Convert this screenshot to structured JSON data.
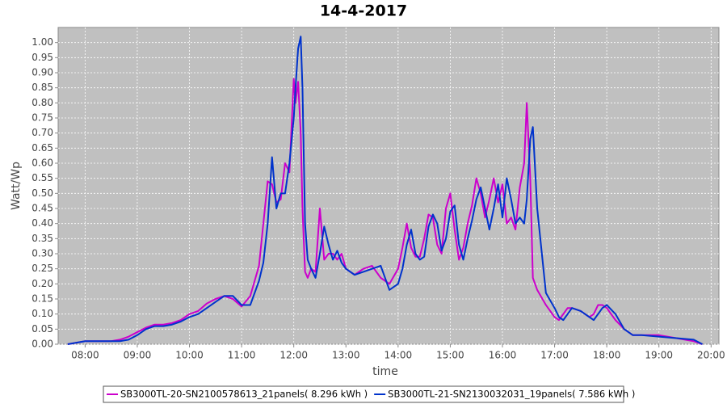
{
  "chart_data": {
    "type": "line",
    "title": "14-4-2017",
    "x_label": "time",
    "y_label": "Watt/Wp",
    "xlim": [
      "07:29",
      "20:09"
    ],
    "xticks": [
      "08:00",
      "09:00",
      "10:00",
      "11:00",
      "12:00",
      "13:00",
      "14:00",
      "15:00",
      "16:00",
      "17:00",
      "18:00",
      "19:00",
      "20:00"
    ],
    "ylim": [
      0,
      1.05
    ],
    "yticks": [
      {
        "value": 0,
        "label": "0.00"
      },
      0.05,
      {
        "value": 0.1,
        "label": "0.10"
      },
      0.15,
      {
        "value": 0.2,
        "label": "0.20"
      },
      0.25,
      {
        "value": 0.3,
        "label": "0.30"
      },
      0.35,
      {
        "value": 0.4,
        "label": "0.40"
      },
      0.45,
      {
        "value": 0.5,
        "label": "0.50"
      },
      0.55,
      {
        "value": 0.6,
        "label": "0.60"
      },
      0.65,
      {
        "value": 0.7,
        "label": "0.70"
      },
      0.75,
      {
        "value": 0.8,
        "label": "0.80"
      },
      0.85,
      {
        "value": 0.9,
        "label": "0.90"
      },
      0.95,
      {
        "value": 1,
        "label": "1.00"
      }
    ],
    "grid": true,
    "legend": "bottom",
    "x": [
      "07:40",
      "07:50",
      "08:00",
      "08:10",
      "08:20",
      "08:30",
      "08:40",
      "08:50",
      "09:00",
      "09:10",
      "09:20",
      "09:30",
      "09:40",
      "09:50",
      "10:00",
      "10:10",
      "10:20",
      "10:30",
      "10:40",
      "10:50",
      "11:00",
      "11:10",
      "11:20",
      "11:25",
      "11:30",
      "11:35",
      "11:40",
      "11:45",
      "11:50",
      "11:55",
      "12:00",
      "12:02",
      "12:05",
      "12:08",
      "12:10",
      "12:13",
      "12:16",
      "12:20",
      "12:25",
      "12:30",
      "12:35",
      "12:40",
      "12:45",
      "12:50",
      "12:55",
      "13:00",
      "13:10",
      "13:20",
      "13:30",
      "13:40",
      "13:50",
      "14:00",
      "14:05",
      "14:10",
      "14:15",
      "14:20",
      "14:25",
      "14:30",
      "14:35",
      "14:40",
      "14:45",
      "14:50",
      "14:55",
      "15:00",
      "15:05",
      "15:10",
      "15:15",
      "15:20",
      "15:25",
      "15:30",
      "15:35",
      "15:40",
      "15:45",
      "15:50",
      "15:55",
      "16:00",
      "16:05",
      "16:10",
      "16:15",
      "16:20",
      "16:25",
      "16:28",
      "16:32",
      "16:35",
      "16:40",
      "16:50",
      "17:00",
      "17:05",
      "17:10",
      "17:15",
      "17:20",
      "17:30",
      "17:40",
      "17:45",
      "17:50",
      "17:55",
      "18:00",
      "18:10",
      "18:20",
      "18:30",
      "18:40",
      "19:00",
      "19:20",
      "19:40",
      "19:50"
    ],
    "series": [
      {
        "name": "SB3000TL-20-SN2100578613_21panels( 8.296 kWh )",
        "color": "#cc00cc",
        "values": [
          0,
          0.005,
          0.01,
          0.01,
          0.01,
          0.01,
          0.015,
          0.025,
          0.04,
          0.055,
          0.065,
          0.065,
          0.07,
          0.08,
          0.1,
          0.11,
          0.135,
          0.15,
          0.16,
          0.15,
          0.125,
          0.16,
          0.26,
          0.4,
          0.54,
          0.53,
          0.47,
          0.48,
          0.6,
          0.57,
          0.88,
          0.8,
          0.87,
          0.7,
          0.45,
          0.24,
          0.22,
          0.25,
          0.24,
          0.45,
          0.28,
          0.3,
          0.3,
          0.28,
          0.3,
          0.25,
          0.23,
          0.25,
          0.26,
          0.22,
          0.2,
          0.25,
          0.32,
          0.4,
          0.32,
          0.29,
          0.29,
          0.35,
          0.43,
          0.42,
          0.33,
          0.3,
          0.45,
          0.5,
          0.38,
          0.28,
          0.32,
          0.4,
          0.46,
          0.55,
          0.5,
          0.42,
          0.48,
          0.55,
          0.47,
          0.53,
          0.4,
          0.42,
          0.38,
          0.52,
          0.6,
          0.8,
          0.55,
          0.22,
          0.18,
          0.13,
          0.09,
          0.08,
          0.1,
          0.12,
          0.12,
          0.11,
          0.09,
          0.1,
          0.13,
          0.13,
          0.12,
          0.08,
          0.05,
          0.03,
          0.03,
          0.03,
          0.02,
          0.01,
          0
        ]
      },
      {
        "name": "SB3000TL-21-SN2130032031_19panels( 7.586 kWh )",
        "color": "#0033cc",
        "values": [
          0,
          0.005,
          0.01,
          0.01,
          0.01,
          0.01,
          0.01,
          0.015,
          0.03,
          0.05,
          0.06,
          0.06,
          0.065,
          0.075,
          0.09,
          0.1,
          0.12,
          0.14,
          0.16,
          0.16,
          0.13,
          0.13,
          0.21,
          0.27,
          0.4,
          0.62,
          0.45,
          0.5,
          0.5,
          0.6,
          0.75,
          0.85,
          0.98,
          1.02,
          0.85,
          0.4,
          0.28,
          0.25,
          0.22,
          0.3,
          0.39,
          0.33,
          0.28,
          0.31,
          0.27,
          0.25,
          0.23,
          0.24,
          0.25,
          0.26,
          0.18,
          0.2,
          0.25,
          0.33,
          0.38,
          0.3,
          0.28,
          0.29,
          0.39,
          0.43,
          0.4,
          0.31,
          0.35,
          0.44,
          0.46,
          0.33,
          0.28,
          0.35,
          0.41,
          0.48,
          0.52,
          0.45,
          0.38,
          0.45,
          0.53,
          0.42,
          0.55,
          0.48,
          0.4,
          0.42,
          0.4,
          0.48,
          0.68,
          0.72,
          0.45,
          0.17,
          0.12,
          0.09,
          0.08,
          0.1,
          0.12,
          0.11,
          0.09,
          0.08,
          0.1,
          0.12,
          0.13,
          0.1,
          0.05,
          0.03,
          0.03,
          0.025,
          0.02,
          0.015,
          0
        ]
      }
    ]
  }
}
